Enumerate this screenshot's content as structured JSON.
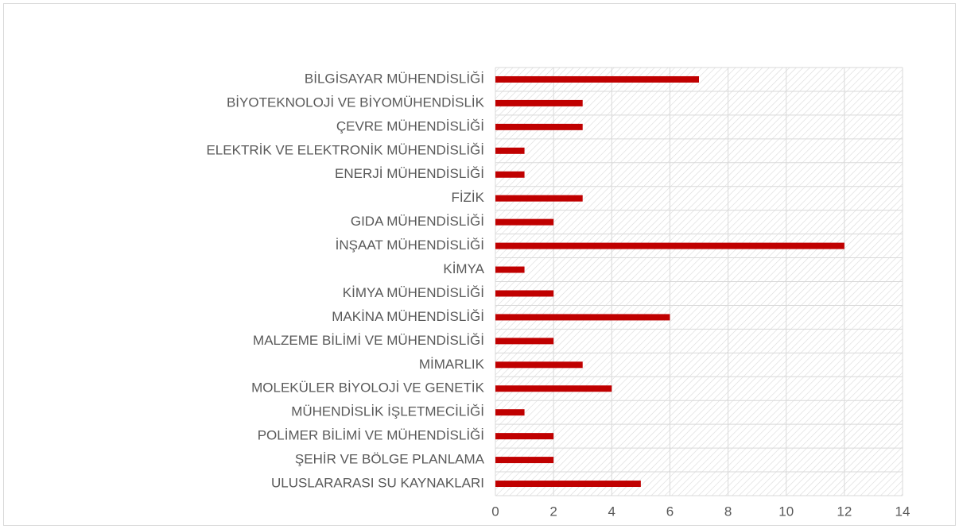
{
  "chart_data": {
    "type": "hbar",
    "categories": [
      "BİLGİSAYAR MÜHENDİSLİĞİ",
      "BİYOTEKNOLOJİ VE BİYOMÜHENDİSLİK",
      "ÇEVRE MÜHENDİSLİĞİ",
      "ELEKTRİK VE ELEKTRONİK MÜHENDİSLİĞİ",
      "ENERJİ MÜHENDİSLİĞİ",
      "FİZİK",
      "GIDA MÜHENDİSLİĞİ",
      "İNŞAAT MÜHENDİSLİĞİ",
      "KİMYA",
      "KİMYA MÜHENDİSLİĞİ",
      "MAKİNA MÜHENDİSLİĞİ",
      "MALZEME BİLİMİ VE MÜHENDİSLİĞİ",
      "MİMARLIK",
      "MOLEKÜLER BİYOLOJİ VE GENETİK",
      "MÜHENDİSLİK İŞLETMECİLİĞİ",
      "POLİMER BİLİMİ VE MÜHENDİSLİĞİ",
      "ŞEHİR VE BÖLGE PLANLAMA",
      "ULUSLARARASI SU KAYNAKLARI"
    ],
    "values": [
      7,
      3,
      3,
      1,
      1,
      3,
      2,
      12,
      1,
      2,
      6,
      2,
      3,
      4,
      1,
      2,
      2,
      5
    ],
    "color": "#c00000",
    "xlim": [
      0,
      14
    ],
    "xticks": [
      0,
      2,
      4,
      6,
      8,
      10,
      12,
      14
    ],
    "grid": true
  }
}
